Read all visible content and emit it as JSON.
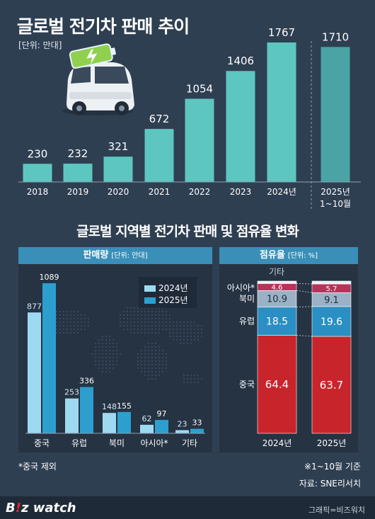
{
  "title": "글로벌 전기차 판매 추이",
  "unit": "[단위: 만대]",
  "section2_title": "글로벌 지역별 전기차 판매 및 점유율 변화",
  "left_panel": {
    "title": "판매량",
    "unit": "[단위: 만대]"
  },
  "right_panel": {
    "title": "점유율",
    "unit": "[단위: %]"
  },
  "footnote": "*중국 제외",
  "note_right": "※1~10월 기준",
  "source": "자료: SNE리서치",
  "logo": {
    "part1": "B",
    "bang": "!",
    "part2": "z watch"
  },
  "credit": "그래픽=비즈워치",
  "colors": {
    "background": "#2f3f52",
    "bar_main": "#5ec6c0",
    "bar_forecast": "#4aa3a4",
    "series_2024": "#9ed9f2",
    "series_2025": "#2d9fcf",
    "china": "#c7252b",
    "europe": "#2a8fc2",
    "north_america": "#9bb1c6",
    "asia": "#b8325a",
    "other": "#eaf1f6"
  },
  "chart_data": [
    {
      "type": "bar",
      "categories": [
        "2018",
        "2019",
        "2020",
        "2021",
        "2022",
        "2023",
        "2024년",
        "2025년\n1~10월"
      ],
      "values": [
        230,
        232,
        321,
        672,
        1054,
        1406,
        1767,
        1710
      ],
      "value_labels": [
        "230",
        "232",
        "321",
        "672",
        "1054",
        "1406",
        "1767",
        "1710"
      ],
      "title": "글로벌 전기차 판매 추이",
      "unit": "[단위: 만대]",
      "ylim": [
        0,
        1767
      ]
    },
    {
      "type": "bar",
      "title": "판매량",
      "unit": "[단위: 만대]",
      "categories": [
        "중국",
        "유럽",
        "북미",
        "아시아*",
        "기타"
      ],
      "series": [
        {
          "name": "2024년",
          "values": [
            877,
            253,
            148,
            62,
            23
          ]
        },
        {
          "name": "2025년",
          "values": [
            1089,
            336,
            155,
            97,
            33
          ]
        }
      ],
      "legend": "top-right",
      "ylim": [
        0,
        1089
      ]
    },
    {
      "type": "bar",
      "subtype": "stacked-percent",
      "title": "점유율",
      "unit": "[단위: %]",
      "categories": [
        "2024년",
        "2025년"
      ],
      "series": [
        {
          "name": "중국",
          "values": [
            64.4,
            63.7
          ]
        },
        {
          "name": "유럽",
          "values": [
            18.5,
            19.6
          ]
        },
        {
          "name": "북미",
          "values": [
            10.9,
            9.1
          ]
        },
        {
          "name": "아시아*",
          "values": [
            4.6,
            5.7
          ]
        },
        {
          "name": "기타",
          "values": [
            1.6,
            1.9
          ]
        }
      ],
      "value_labels": [
        [
          "64.4",
          "63.7"
        ],
        [
          "18.5",
          "19.6"
        ],
        [
          "10.9",
          "9.1"
        ],
        [
          "4.6",
          "5.7"
        ],
        [
          "",
          ""
        ]
      ]
    }
  ]
}
